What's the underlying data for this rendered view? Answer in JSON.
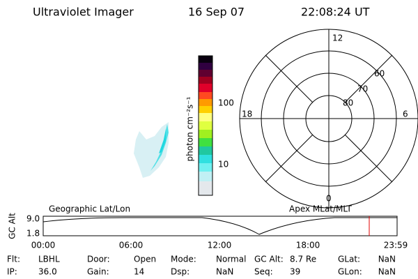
{
  "header": {
    "title": "Ultraviolet Imager",
    "date": "16 Sep 07",
    "time": "22:08:24 UT"
  },
  "colorbar": {
    "title": "photon cm⁻²s⁻¹",
    "ticks": [
      "100",
      "10"
    ]
  },
  "polar": {
    "mlt_labels": [
      "12",
      "6",
      "0",
      "18"
    ],
    "lat_labels": [
      "60",
      "70",
      "80"
    ]
  },
  "timeline": {
    "left_label": "Geographic Lat/Lon",
    "right_label": "Apex MLat/MLT",
    "y_label": "GC Alt",
    "y_ticks": [
      "9.0",
      "1.8"
    ],
    "x_ticks": [
      "00:00",
      "06:00",
      "12:00",
      "18:00",
      "23:59"
    ]
  },
  "info": [
    [
      {
        "label": "Flt:",
        "value": "LBHL"
      },
      {
        "label": "Door:",
        "value": "Open"
      },
      {
        "label": "Mode:",
        "value": "Normal"
      },
      {
        "label": "GC Alt:",
        "value": "8.7 Re"
      },
      {
        "label": "GLat:",
        "value": "NaN"
      }
    ],
    [
      {
        "label": "IP:",
        "value": "36.0"
      },
      {
        "label": "Gain:",
        "value": "14"
      },
      {
        "label": "Dsp:",
        "value": "NaN"
      },
      {
        "label": "Seq:",
        "value": "39"
      },
      {
        "label": "GLon:",
        "value": "NaN"
      }
    ]
  ]
}
